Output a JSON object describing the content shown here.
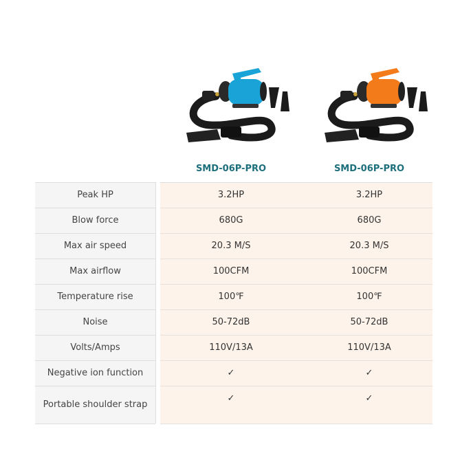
{
  "products": [
    {
      "name": "SMD-06P-PRO",
      "color": "#1aa3d6",
      "image_alt": "blue pet dryer"
    },
    {
      "name": "SMD-06P-PRO",
      "color": "#f47b1a",
      "image_alt": "orange pet dryer"
    }
  ],
  "rows": [
    {
      "label": "Peak HP",
      "values": [
        "3.2HP",
        "3.2HP"
      ]
    },
    {
      "label": "Blow force",
      "values": [
        "680G",
        "680G"
      ]
    },
    {
      "label": "Max air speed",
      "values": [
        "20.3 M/S",
        "20.3 M/S"
      ]
    },
    {
      "label": "Max airflow",
      "values": [
        "100CFM",
        "100CFM"
      ]
    },
    {
      "label": "Temperature rise",
      "values": [
        "100℉",
        "100℉"
      ]
    },
    {
      "label": "Noise",
      "values": [
        "50-72dB",
        "50-72dB"
      ]
    },
    {
      "label": "Volts/Amps",
      "values": [
        "110V/13A",
        "110V/13A"
      ]
    },
    {
      "label": "Negative ion function",
      "values": [
        "✓",
        "✓"
      ]
    },
    {
      "label": "Portable shoulder strap",
      "values": [
        "✓",
        "✓"
      ]
    }
  ]
}
